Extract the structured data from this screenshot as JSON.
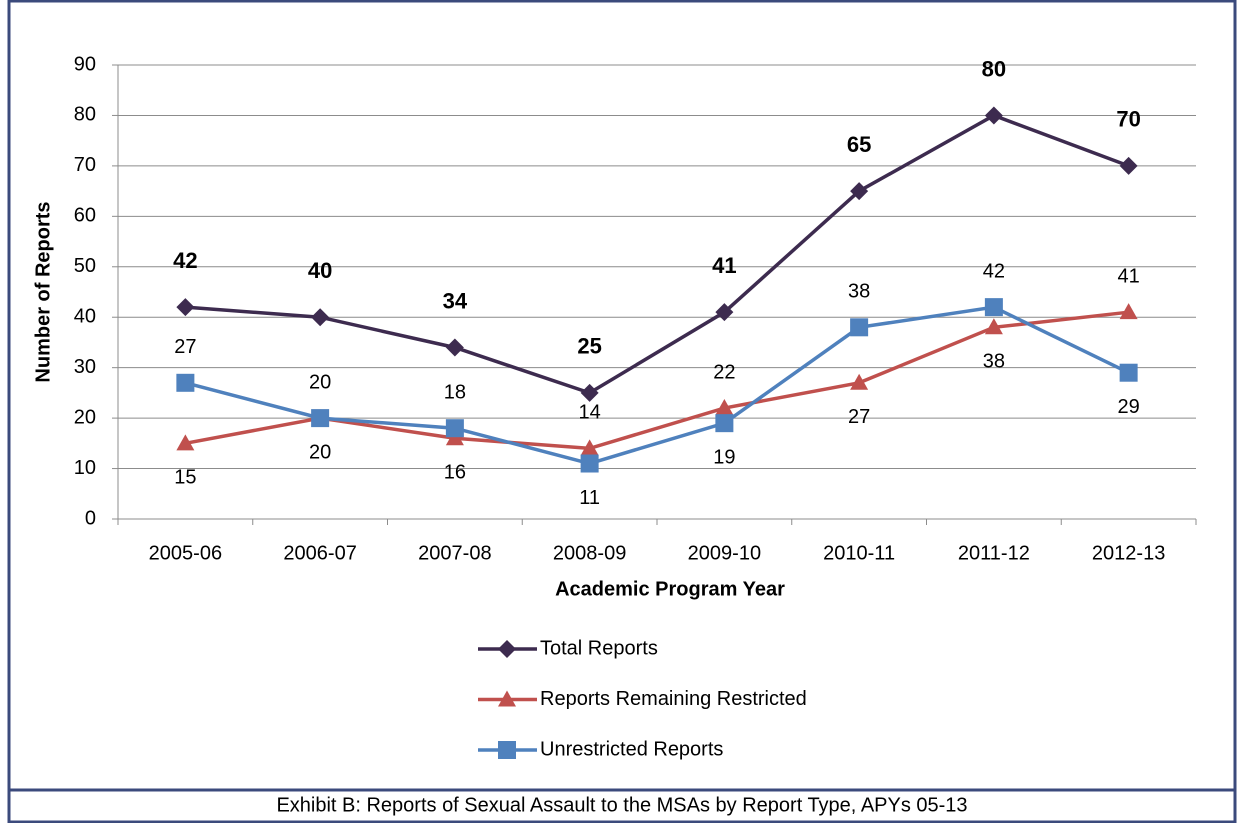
{
  "chart_data": {
    "type": "line",
    "xlabel": "Academic Program Year",
    "ylabel": "Number of Reports",
    "caption": "Exhibit B:  Reports of Sexual Assault to the MSAs by Report Type, APYs 05-13",
    "categories": [
      "2005-06",
      "2006-07",
      "2007-08",
      "2008-09",
      "2009-10",
      "2010-11",
      "2011-12",
      "2012-13"
    ],
    "series": [
      {
        "name": "Total Reports",
        "color": "#3d2b4f",
        "marker": "diamond",
        "values": [
          42,
          40,
          34,
          25,
          41,
          65,
          80,
          70
        ]
      },
      {
        "name": "Reports Remaining Restricted",
        "color": "#c0504d",
        "marker": "triangle",
        "values": [
          15,
          20,
          16,
          14,
          22,
          27,
          38,
          41
        ]
      },
      {
        "name": "Unrestricted Reports",
        "color": "#4f81bd",
        "marker": "square",
        "values": [
          27,
          20,
          18,
          11,
          19,
          38,
          42,
          29
        ]
      }
    ],
    "ylim": [
      0,
      90
    ],
    "yticks": [
      0,
      10,
      20,
      30,
      40,
      50,
      60,
      70,
      80,
      90
    ],
    "grid": true,
    "legend": "bottom"
  }
}
